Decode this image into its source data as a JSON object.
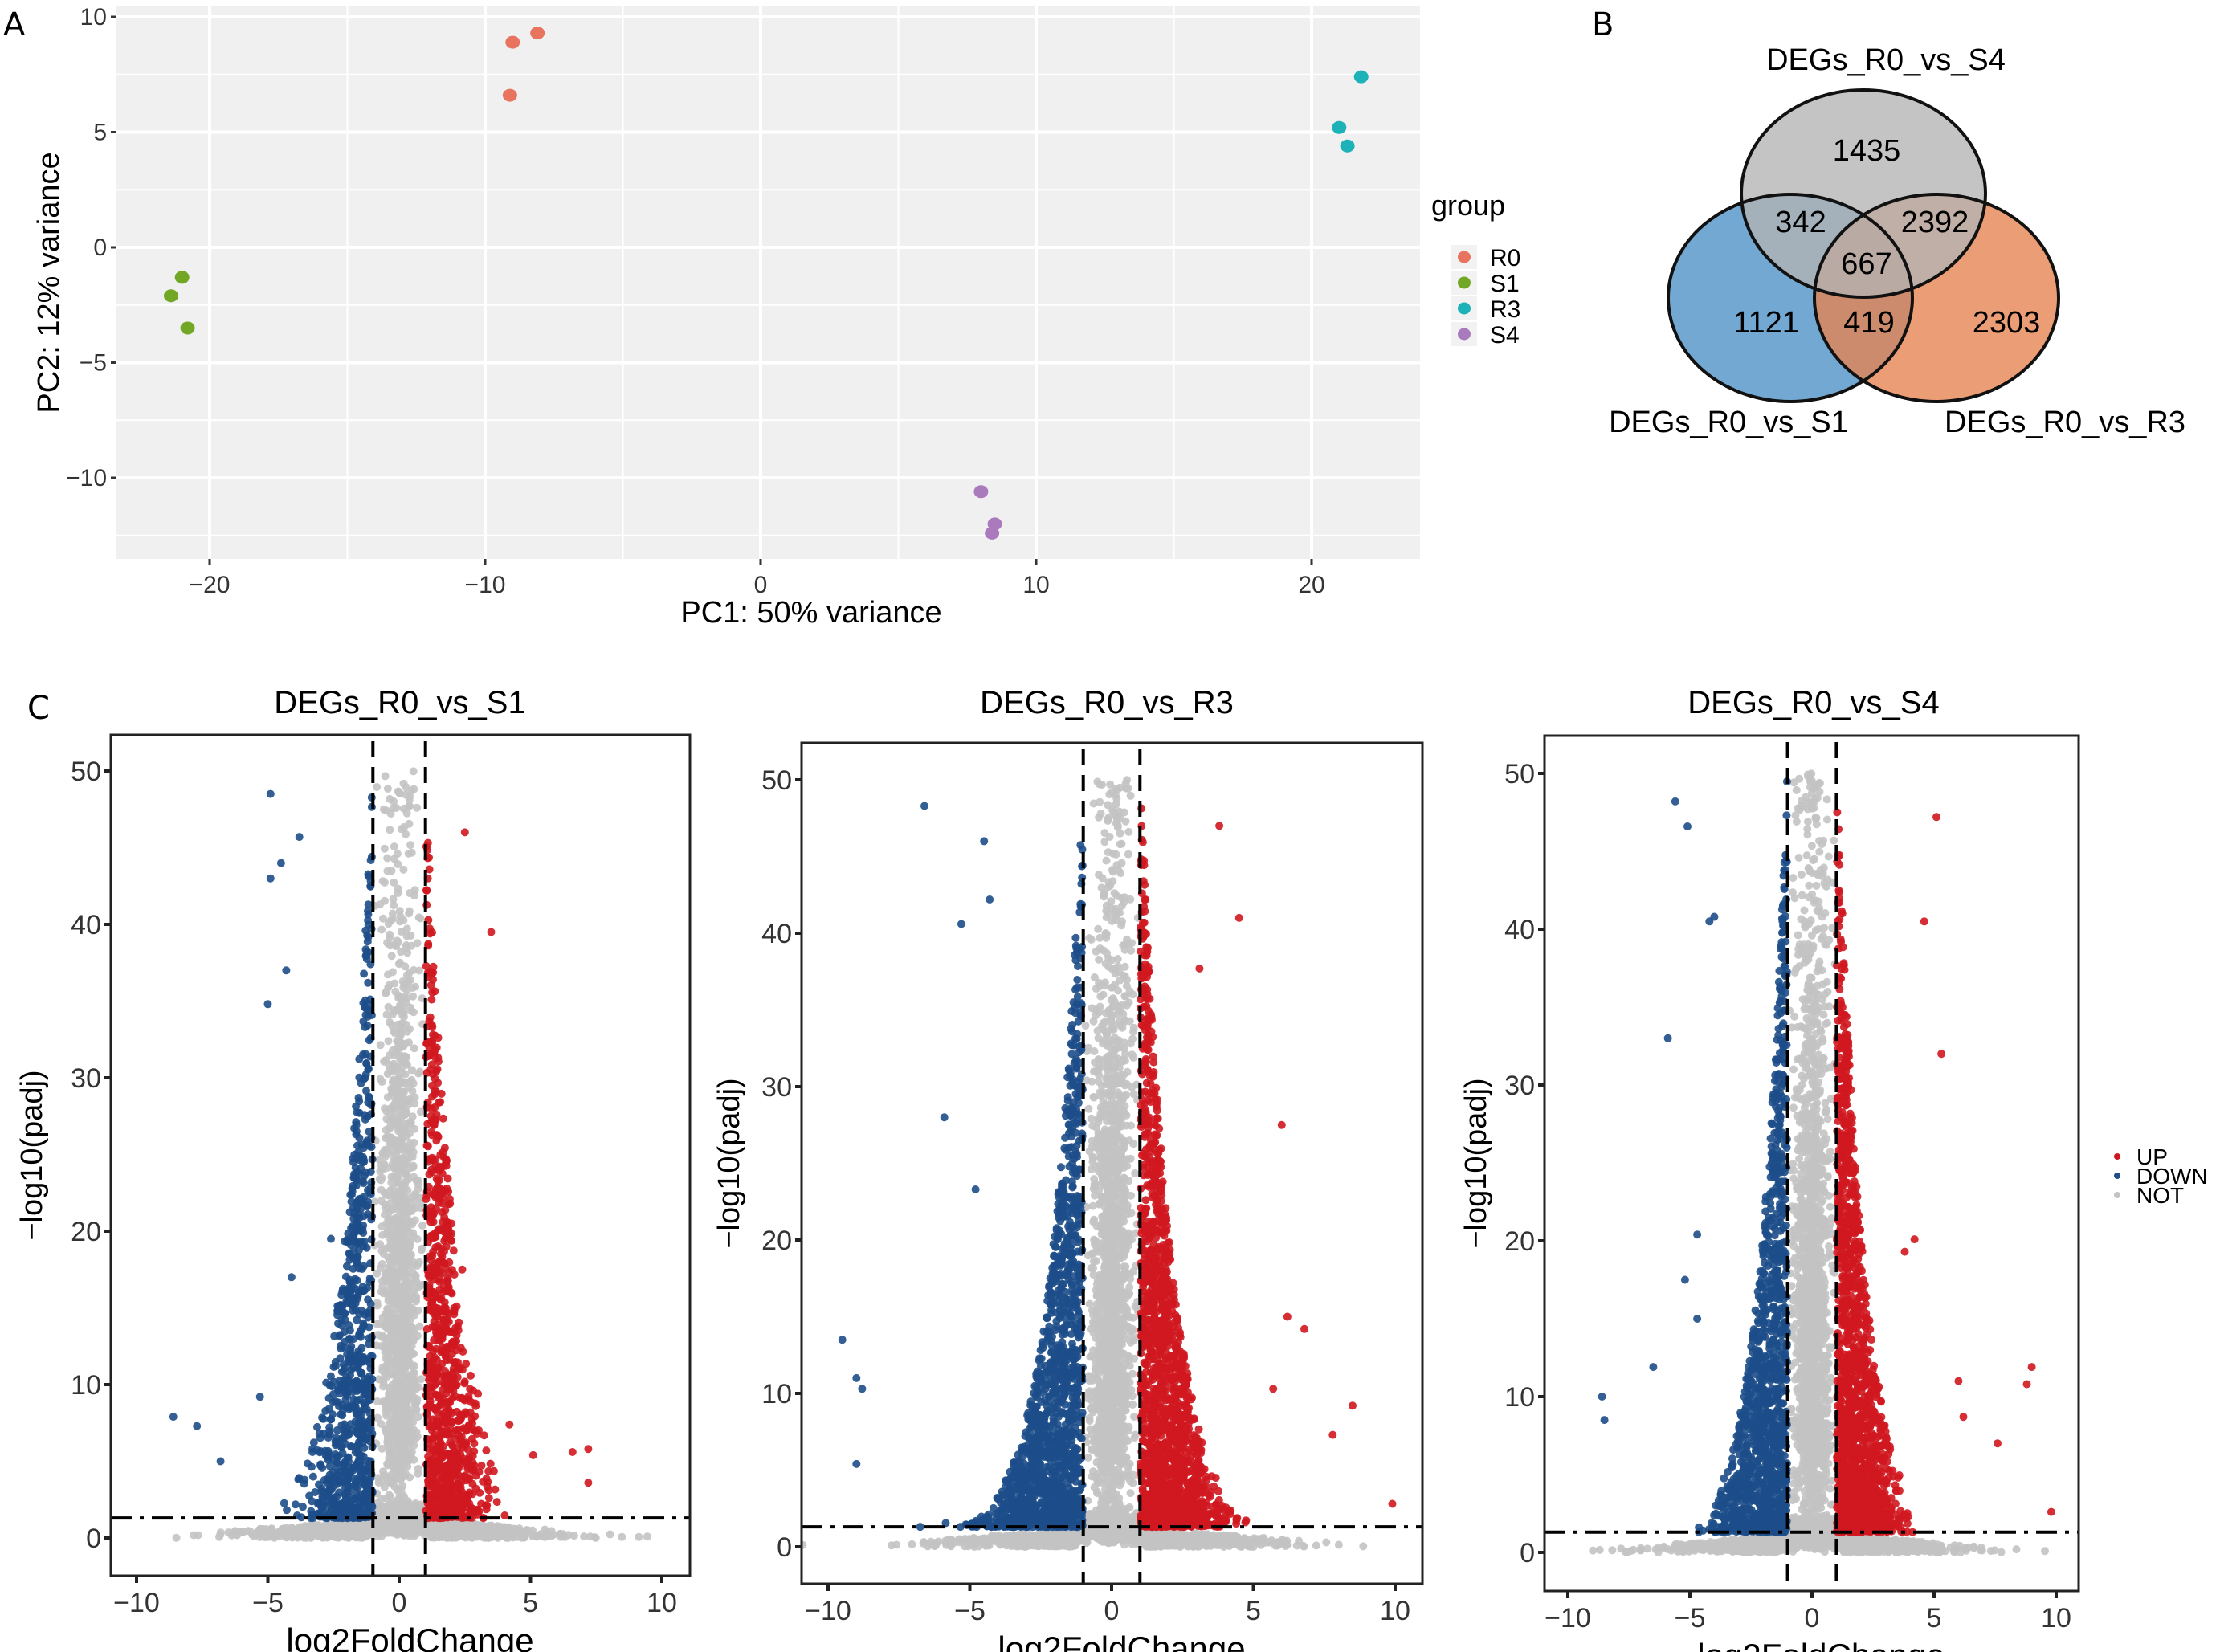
{
  "panels": {
    "A": "A",
    "B": "B",
    "C": "C"
  },
  "chart_data": [
    {
      "id": "pca",
      "type": "scatter",
      "title": "",
      "xlabel": "PC1: 50% variance",
      "ylabel": "PC2: 12% variance",
      "xlim": [
        -24,
        24.5
      ],
      "ylim": [
        -13.5,
        10.4
      ],
      "xticks": [
        -20,
        -10,
        0,
        10,
        20
      ],
      "xtick_labels": [
        "-20",
        "-10",
        "0",
        "10",
        "20"
      ],
      "yticks": [
        -10,
        -5,
        0,
        5,
        10
      ],
      "ytick_labels": [
        "-10",
        "-5",
        "0",
        "5",
        "10"
      ],
      "grid": true,
      "background": "#f0f0f0",
      "legend": {
        "title": "group",
        "placement": "right"
      },
      "series": [
        {
          "name": "R0",
          "color": "#e8735f",
          "points": [
            [
              -9.0,
              8.9
            ],
            [
              -8.1,
              9.3
            ],
            [
              -9.1,
              6.6
            ]
          ]
        },
        {
          "name": "S1",
          "color": "#72a625",
          "points": [
            [
              -21.0,
              -1.3
            ],
            [
              -21.4,
              -2.1
            ],
            [
              -20.8,
              -3.5
            ]
          ]
        },
        {
          "name": "R3",
          "color": "#1db1b8",
          "points": [
            [
              21.8,
              7.4
            ],
            [
              21.0,
              5.2
            ],
            [
              21.3,
              4.4
            ]
          ]
        },
        {
          "name": "S4",
          "color": "#a97bbd",
          "points": [
            [
              8.0,
              -10.6
            ],
            [
              8.5,
              -12.0
            ],
            [
              8.4,
              -12.4
            ]
          ]
        }
      ]
    },
    {
      "id": "venn",
      "type": "venn",
      "sets": [
        {
          "name": "DEGs_R0_vs_S4",
          "color": "#b4b4b4"
        },
        {
          "name": "DEGs_R0_vs_S1",
          "color": "#4a90c4"
        },
        {
          "name": "DEGs_R0_vs_R3",
          "color": "#e6834f"
        }
      ],
      "regions": [
        {
          "sets": [
            "DEGs_R0_vs_S4"
          ],
          "value": 1435
        },
        {
          "sets": [
            "DEGs_R0_vs_S4",
            "DEGs_R0_vs_S1"
          ],
          "value": 342
        },
        {
          "sets": [
            "DEGs_R0_vs_S4",
            "DEGs_R0_vs_R3"
          ],
          "value": 2392
        },
        {
          "sets": [
            "DEGs_R0_vs_S4",
            "DEGs_R0_vs_S1",
            "DEGs_R0_vs_R3"
          ],
          "value": 667
        },
        {
          "sets": [
            "DEGs_R0_vs_S1"
          ],
          "value": 1121
        },
        {
          "sets": [
            "DEGs_R0_vs_S1",
            "DEGs_R0_vs_R3"
          ],
          "value": 419
        },
        {
          "sets": [
            "DEGs_R0_vs_R3"
          ],
          "value": 2303
        }
      ]
    },
    {
      "id": "volcano-s1",
      "type": "scatter",
      "title": "DEGs_R0_vs_S1",
      "xlabel": "log2FoldChange",
      "ylabel": "-log10(padj)",
      "xlim": [
        -11.2,
        10.9
      ],
      "ylim": [
        -2.4,
        52.4
      ],
      "xticks": [
        -10,
        -5,
        0,
        5,
        10
      ],
      "xtick_labels": [
        "-10",
        "-5",
        "0",
        "5",
        "10"
      ],
      "yticks": [
        0,
        10,
        20,
        30,
        40,
        50
      ],
      "ytick_labels": [
        "0",
        "10",
        "20",
        "30",
        "40",
        "50"
      ],
      "thresholds": {
        "log2fc": [
          -1,
          1
        ],
        "neg_log10_padj": 1.3
      },
      "cloud": {
        "up_spread": 1.6,
        "down_spread": 1.8,
        "n_up": 900,
        "n_down": 800,
        "n_not": 2600,
        "seed": 11
      },
      "outliers": {
        "down": [
          [
            -8.6,
            7.9
          ],
          [
            -7.7,
            7.3
          ],
          [
            -5.3,
            9.2
          ],
          [
            -6.8,
            5.0
          ],
          [
            -4.1,
            17.0
          ],
          [
            -2.6,
            19.5
          ],
          [
            -5.0,
            34.8
          ],
          [
            -4.9,
            43.0
          ],
          [
            -4.9,
            48.5
          ],
          [
            -4.5,
            44.0
          ],
          [
            -4.3,
            37.0
          ],
          [
            -3.8,
            45.7
          ]
        ],
        "up": [
          [
            4.2,
            7.4
          ],
          [
            3.0,
            9.4
          ],
          [
            5.1,
            5.4
          ],
          [
            6.6,
            5.6
          ],
          [
            7.2,
            5.8
          ],
          [
            7.2,
            3.6
          ],
          [
            3.5,
            39.5
          ],
          [
            2.5,
            46.0
          ],
          [
            2.4,
            17.5
          ]
        ]
      },
      "series": [
        {
          "name": "UP",
          "color": "#d0171f"
        },
        {
          "name": "DOWN",
          "color": "#1d4e8a"
        },
        {
          "name": "NOT",
          "color": "#c3c3c3"
        }
      ]
    },
    {
      "id": "volcano-r3",
      "type": "scatter",
      "title": "DEGs_R0_vs_R3",
      "xlabel": "log2FoldChange",
      "ylabel": "-log10(padj)",
      "xlim": [
        -11.2,
        10.8
      ],
      "ylim": [
        -2.4,
        52.4
      ],
      "xticks": [
        -10,
        -5,
        0,
        5,
        10
      ],
      "xtick_labels": [
        "-10",
        "-5",
        "0",
        "5",
        "10"
      ],
      "yticks": [
        0,
        10,
        20,
        30,
        40,
        50
      ],
      "ytick_labels": [
        "0",
        "10",
        "20",
        "30",
        "40",
        "50"
      ],
      "thresholds": {
        "log2fc": [
          -1,
          1
        ],
        "neg_log10_padj": 1.3
      },
      "cloud": {
        "up_spread": 2.0,
        "down_spread": 2.6,
        "n_up": 1700,
        "n_down": 1500,
        "n_not": 3200,
        "seed": 23
      },
      "outliers": {
        "down": [
          [
            -9.5,
            13.5
          ],
          [
            -9.0,
            11.0
          ],
          [
            -8.8,
            10.3
          ],
          [
            -9.0,
            5.4
          ],
          [
            -5.9,
            28.0
          ],
          [
            -5.3,
            40.6
          ],
          [
            -6.6,
            48.3
          ],
          [
            -4.5,
            46.0
          ],
          [
            -4.3,
            42.2
          ],
          [
            -4.8,
            23.3
          ]
        ],
        "up": [
          [
            9.9,
            2.8
          ],
          [
            8.5,
            9.2
          ],
          [
            6.2,
            15.0
          ],
          [
            6.8,
            14.2
          ],
          [
            5.7,
            10.3
          ],
          [
            7.8,
            7.3
          ],
          [
            6.0,
            27.5
          ],
          [
            4.5,
            41.0
          ],
          [
            3.8,
            47.0
          ],
          [
            3.1,
            37.7
          ]
        ]
      },
      "series": [
        {
          "name": "UP",
          "color": "#d0171f"
        },
        {
          "name": "DOWN",
          "color": "#1d4e8a"
        },
        {
          "name": "NOT",
          "color": "#c3c3c3"
        }
      ]
    },
    {
      "id": "volcano-s4",
      "type": "scatter",
      "title": "DEGs_R0_vs_S4",
      "xlabel": "log2FoldChange",
      "ylabel": "-log10(padj)",
      "xlim": [
        -11.0,
        10.9
      ],
      "ylim": [
        -2.5,
        52.4
      ],
      "xticks": [
        -10,
        -5,
        0,
        5,
        10
      ],
      "xtick_labels": [
        "-10",
        "-5",
        "0",
        "5",
        "10"
      ],
      "yticks": [
        0,
        10,
        20,
        30,
        40,
        50
      ],
      "ytick_labels": [
        "0",
        "10",
        "20",
        "30",
        "40",
        "50"
      ],
      "thresholds": {
        "log2fc": [
          -1,
          1
        ],
        "neg_log10_padj": 1.3
      },
      "cloud": {
        "up_spread": 1.8,
        "down_spread": 2.0,
        "n_up": 1500,
        "n_down": 1300,
        "n_not": 3000,
        "seed": 37
      },
      "outliers": {
        "down": [
          [
            -8.6,
            10.0
          ],
          [
            -8.5,
            8.5
          ],
          [
            -6.5,
            11.9
          ],
          [
            -5.2,
            17.5
          ],
          [
            -4.7,
            20.4
          ],
          [
            -4.7,
            15.0
          ],
          [
            -5.9,
            33.0
          ],
          [
            -5.6,
            48.2
          ],
          [
            -5.1,
            46.6
          ],
          [
            -4.2,
            40.5
          ],
          [
            -4.0,
            40.8
          ]
        ],
        "up": [
          [
            9.0,
            11.9
          ],
          [
            8.8,
            10.8
          ],
          [
            6.0,
            11.0
          ],
          [
            6.2,
            8.7
          ],
          [
            7.6,
            7.0
          ],
          [
            9.8,
            2.6
          ],
          [
            4.2,
            20.1
          ],
          [
            3.8,
            19.3
          ],
          [
            5.1,
            47.2
          ],
          [
            4.6,
            40.5
          ],
          [
            5.3,
            32.0
          ]
        ]
      },
      "series": [
        {
          "name": "UP",
          "color": "#d0171f"
        },
        {
          "name": "DOWN",
          "color": "#1d4e8a"
        },
        {
          "name": "NOT",
          "color": "#c3c3c3"
        }
      ]
    }
  ],
  "volcano_legend": [
    {
      "name": "UP",
      "color": "#d0171f"
    },
    {
      "name": "DOWN",
      "color": "#1d4e8a"
    },
    {
      "name": "NOT",
      "color": "#c3c3c3"
    }
  ]
}
